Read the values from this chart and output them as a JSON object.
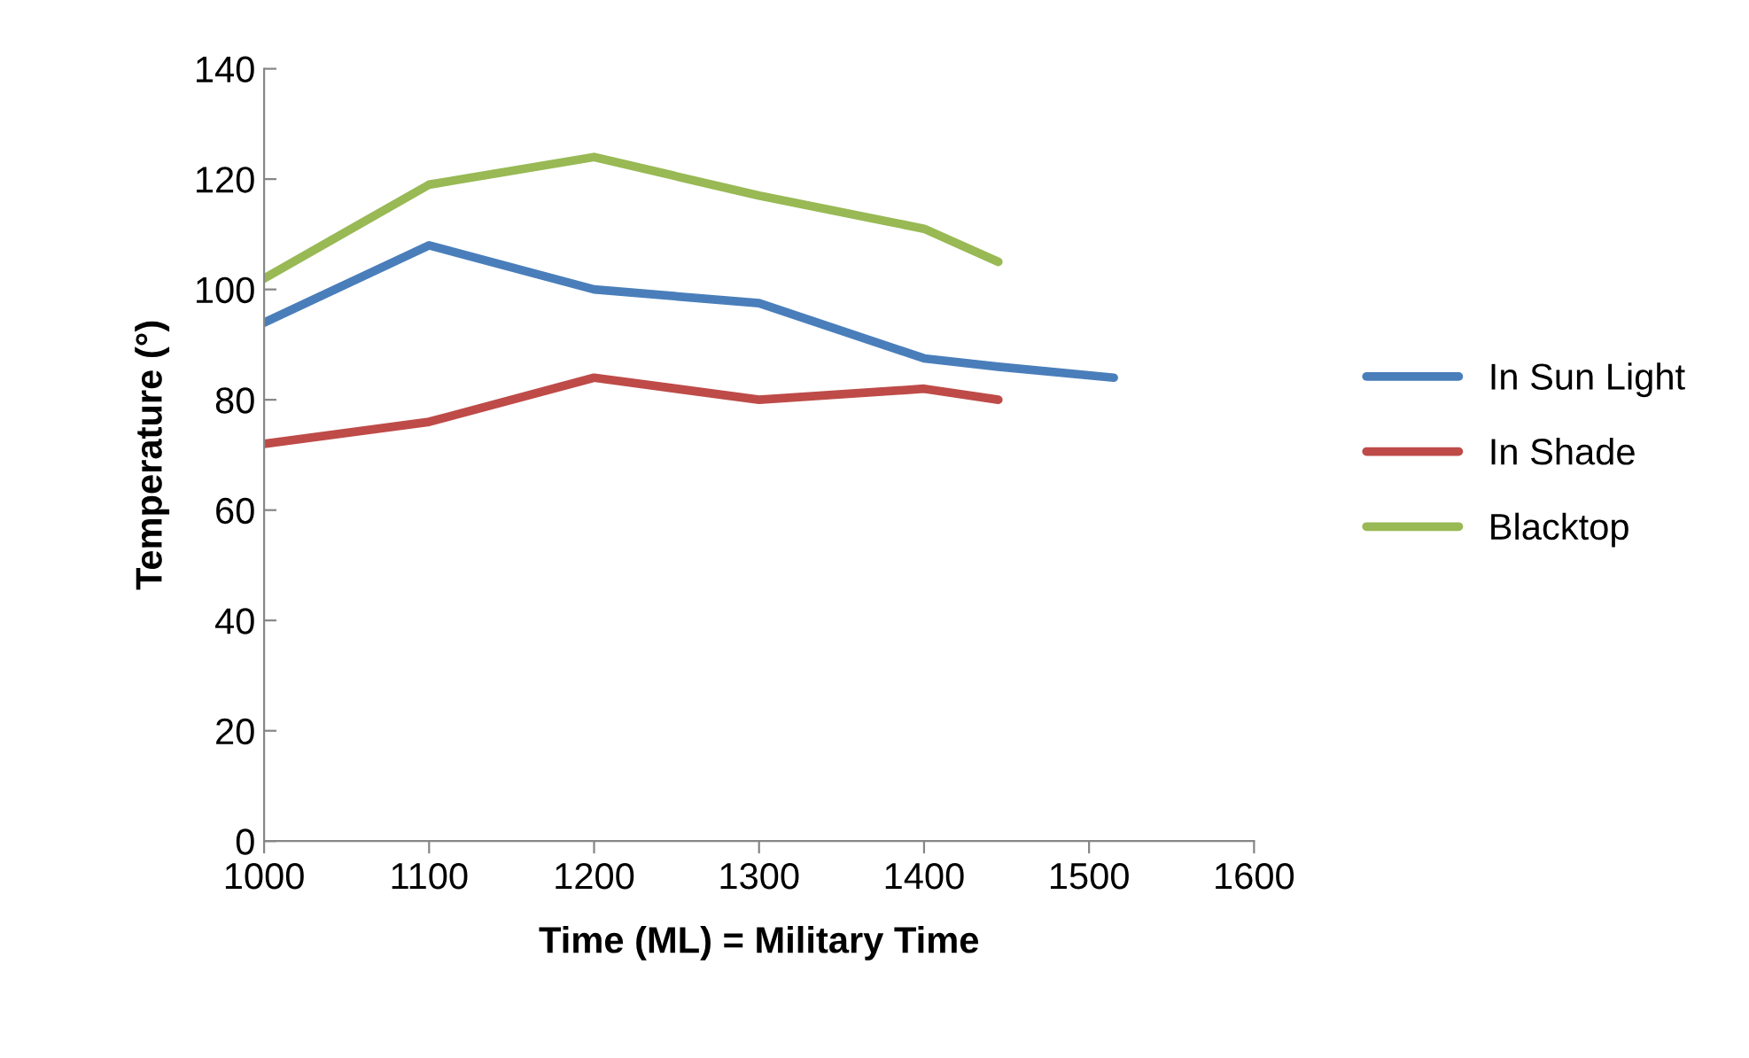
{
  "chart_data": {
    "type": "line",
    "xlabel": "Time (ML) = Military Time",
    "ylabel": "Temperature (°)",
    "series": [
      {
        "name": "In Sun Light",
        "color": "#4a7ebb",
        "x": [
          1000,
          1100,
          1200,
          1300,
          1400,
          1445,
          1515
        ],
        "values": [
          94,
          108,
          100,
          97.5,
          87.5,
          86,
          84
        ]
      },
      {
        "name": "In Shade",
        "color": "#be4b48",
        "x": [
          1000,
          1100,
          1200,
          1300,
          1400,
          1445
        ],
        "values": [
          72,
          76,
          84,
          80,
          82,
          80
        ]
      },
      {
        "name": "Blacktop",
        "color": "#98b954",
        "x": [
          1000,
          1100,
          1200,
          1300,
          1400,
          1445
        ],
        "values": [
          102,
          119,
          124,
          117,
          111,
          105
        ]
      }
    ],
    "xlim": [
      1000,
      1600
    ],
    "xticks": [
      1000,
      1100,
      1200,
      1300,
      1400,
      1500,
      1600
    ],
    "ylim": [
      0,
      140
    ],
    "yticks": [
      0,
      20,
      40,
      60,
      80,
      100,
      120,
      140
    ],
    "grid": false,
    "legend": "right",
    "marker": "none",
    "line_style": "solid"
  }
}
